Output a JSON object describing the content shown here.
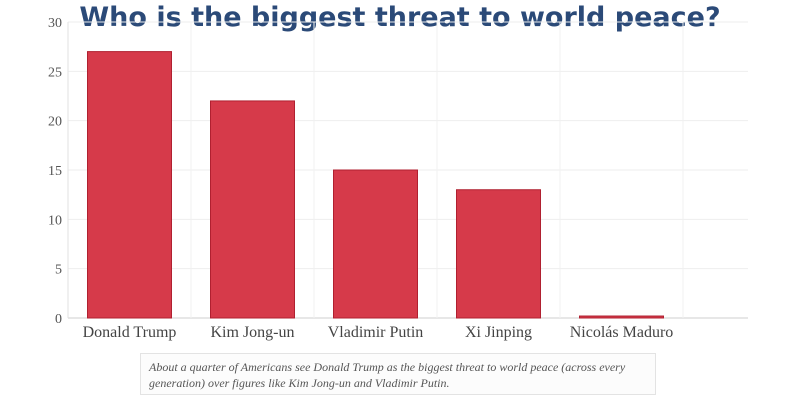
{
  "chart_data": {
    "type": "bar",
    "title": "Who is the biggest threat to world peace?",
    "categories": [
      "Donald Trump",
      "Kim Jong-un",
      "Vladimir Putin",
      "Xi Jinping",
      "Nicolás Maduro"
    ],
    "values": [
      27,
      22,
      15,
      13,
      0.2
    ],
    "ylim": [
      0,
      30
    ],
    "yticks": [
      "0",
      "5",
      "10",
      "15",
      "20",
      "25",
      "30"
    ],
    "xlabel": "",
    "ylabel": "",
    "grid": true,
    "bar_color": "#d63a4a",
    "bar_edge_color": "#b02030"
  },
  "caption": "About a quarter of Americans see Donald Trump as the biggest threat to world peace (across every generation) over figures like Kim Jong-un and Vladimir Putin."
}
